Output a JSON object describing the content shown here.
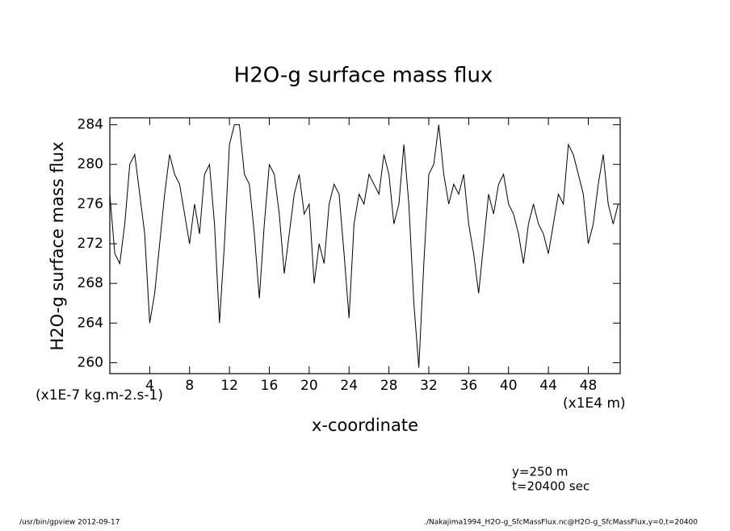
{
  "chart_data": {
    "type": "line",
    "title": "H2O-g surface mass flux",
    "y_label": "H2O-g surface mass flux",
    "y_unit": "(x1E-7 kg.m-2.s-1)",
    "x_label": "x-coordinate",
    "x_unit": "(x1E4 m)",
    "annotations": [
      "y=250 m",
      "t=20400 sec"
    ],
    "footer_left": "/usr/bin/gpview  2012-09-17",
    "footer_right": "./Nakajima1994_H2O-g_SfcMassFlux.nc@H2O-g_SfcMassFlux,y=0,t=20400",
    "color": "#000000",
    "xlim": [
      0,
      51.2
    ],
    "ylim": [
      258.9,
      284.7
    ],
    "xticks": [
      4,
      8,
      12,
      16,
      20,
      24,
      28,
      32,
      36,
      40,
      44,
      48
    ],
    "yticks": [
      260,
      264,
      268,
      272,
      276,
      280,
      284
    ],
    "x": [
      0,
      0.5,
      1,
      1.5,
      2,
      2.5,
      3,
      3.5,
      4,
      4.5,
      5,
      5.5,
      6,
      6.5,
      7,
      7.5,
      8,
      8.5,
      9,
      9.5,
      10,
      10.5,
      11,
      11.5,
      12,
      12.5,
      13,
      13.5,
      14,
      14.5,
      15,
      15.5,
      16,
      16.5,
      17,
      17.5,
      18,
      18.5,
      19,
      19.5,
      20,
      20.5,
      21,
      21.5,
      22,
      22.5,
      23,
      23.5,
      24,
      24.5,
      25,
      25.5,
      26,
      26.5,
      27,
      27.5,
      28,
      28.5,
      29,
      29.5,
      30,
      30.5,
      31,
      31.5,
      32,
      32.5,
      33,
      33.5,
      34,
      34.5,
      35,
      35.5,
      36,
      36.5,
      37,
      37.5,
      38,
      38.5,
      39,
      39.5,
      40,
      40.5,
      41,
      41.5,
      42,
      42.5,
      43,
      43.5,
      44,
      44.5,
      45,
      45.5,
      46,
      46.5,
      47,
      47.5,
      48,
      48.5,
      49,
      49.5,
      50,
      50.5,
      51
    ],
    "values": [
      277,
      271,
      270,
      274,
      280,
      281,
      277,
      273,
      264,
      267,
      272,
      277,
      281,
      279,
      278,
      275,
      272,
      276,
      273,
      279,
      280,
      274,
      264,
      272,
      282,
      284,
      284,
      279,
      278,
      273,
      266.5,
      274,
      280,
      279,
      275,
      269,
      273,
      277,
      279,
      275,
      276,
      268,
      272,
      270,
      276,
      278,
      277,
      271,
      264.5,
      274,
      277,
      276,
      279,
      278,
      277,
      281,
      279,
      274,
      276,
      282,
      276,
      266,
      259.5,
      270,
      279,
      280,
      284,
      279,
      276,
      278,
      277,
      279,
      274,
      271,
      267,
      272,
      277,
      275,
      278,
      279,
      276,
      275,
      273,
      270,
      274,
      276,
      274,
      273,
      271,
      274,
      277,
      276,
      282,
      281,
      279,
      277,
      272,
      274,
      278,
      281,
      276,
      274,
      276
    ]
  }
}
